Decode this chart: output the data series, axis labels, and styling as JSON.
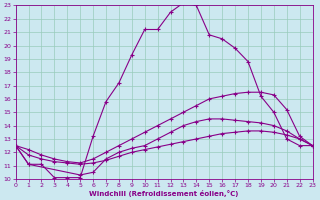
{
  "xlabel": "Windchill (Refroidissement éolien,°C)",
  "ylabel": "",
  "bg_color": "#cce8f0",
  "line_color": "#880088",
  "grid_color": "#99ccbb",
  "xlim": [
    0,
    23
  ],
  "ylim": [
    10,
    23
  ],
  "xticks": [
    0,
    1,
    2,
    3,
    4,
    5,
    6,
    7,
    8,
    9,
    10,
    11,
    12,
    13,
    14,
    15,
    16,
    17,
    18,
    19,
    20,
    21,
    22,
    23
  ],
  "yticks": [
    10,
    11,
    12,
    13,
    14,
    15,
    16,
    17,
    18,
    19,
    20,
    21,
    22,
    23
  ],
  "curve1_x": [
    0,
    1,
    2,
    3,
    4,
    5,
    6,
    7,
    8,
    9,
    10,
    11,
    12,
    13,
    14,
    15,
    16,
    17,
    18,
    19,
    20,
    21,
    22,
    23
  ],
  "curve1_y": [
    12.5,
    11.1,
    11.1,
    10.1,
    10.1,
    10.1,
    13.2,
    15.8,
    17.2,
    19.3,
    21.2,
    21.2,
    22.5,
    23.2,
    23.0,
    20.8,
    20.5,
    19.8,
    18.8,
    16.2,
    15.0,
    13.0,
    12.5,
    12.5
  ],
  "curve2_x": [
    0,
    1,
    2,
    3,
    4,
    5,
    6,
    7,
    8,
    9,
    10,
    11,
    12,
    13,
    14,
    15,
    16,
    17,
    18,
    19,
    20,
    21,
    22,
    23
  ],
  "curve2_y": [
    12.5,
    12.2,
    11.8,
    11.5,
    11.3,
    11.2,
    11.5,
    12.0,
    12.5,
    13.0,
    13.5,
    14.0,
    14.5,
    15.0,
    15.5,
    16.0,
    16.2,
    16.4,
    16.5,
    16.5,
    16.3,
    15.2,
    13.2,
    12.5
  ],
  "curve3_x": [
    0,
    1,
    2,
    3,
    4,
    5,
    6,
    7,
    8,
    9,
    10,
    11,
    12,
    13,
    14,
    15,
    16,
    17,
    18,
    19,
    20,
    21,
    22,
    23
  ],
  "curve3_y": [
    12.5,
    11.8,
    11.5,
    11.3,
    11.2,
    11.1,
    11.2,
    11.4,
    11.7,
    12.0,
    12.2,
    12.4,
    12.6,
    12.8,
    13.0,
    13.2,
    13.4,
    13.5,
    13.6,
    13.6,
    13.5,
    13.3,
    13.0,
    12.5
  ],
  "curve4_x": [
    0,
    1,
    5,
    6,
    7,
    8,
    9,
    10,
    11,
    12,
    13,
    14,
    15,
    16,
    17,
    18,
    19,
    20,
    21,
    22,
    23
  ],
  "curve4_y": [
    12.5,
    11.1,
    10.3,
    10.5,
    11.5,
    12.0,
    12.3,
    12.5,
    13.0,
    13.5,
    14.0,
    14.3,
    14.5,
    14.5,
    14.4,
    14.3,
    14.2,
    14.0,
    13.6,
    13.0,
    12.5
  ]
}
